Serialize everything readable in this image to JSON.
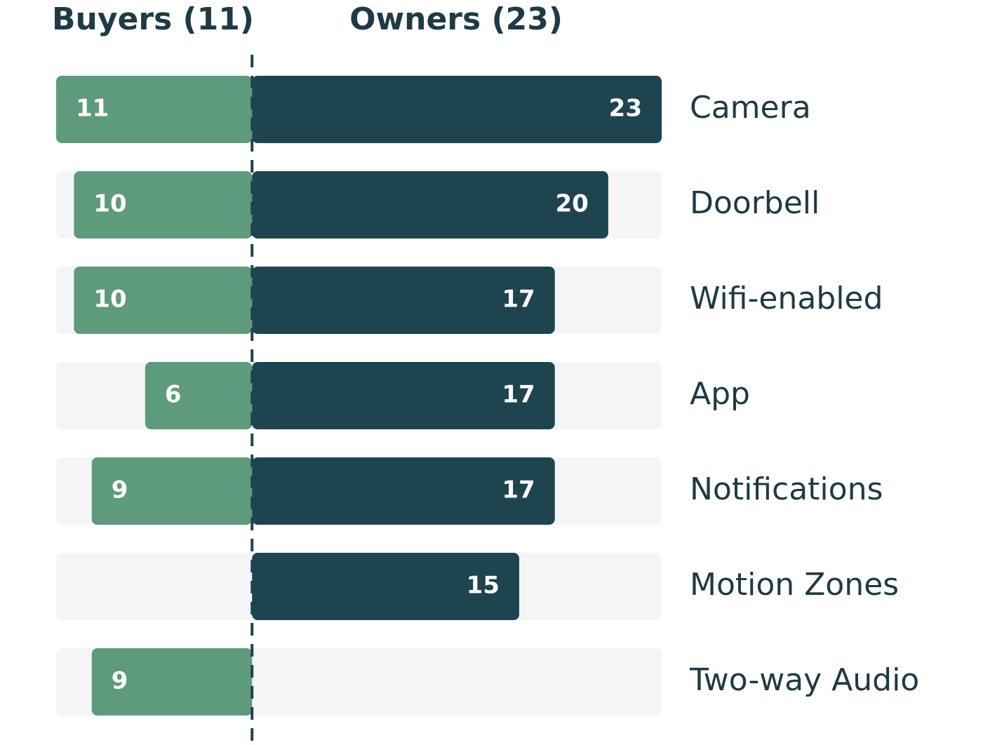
{
  "chart_data": {
    "type": "diverging-bar",
    "categories": [
      "Camera",
      "Doorbell",
      "Wifi-enabled",
      "App",
      "Notifications",
      "Motion Zones",
      "Two-way Audio"
    ],
    "series": [
      {
        "name": "Buyers (11)",
        "color": "#5e9a7c",
        "values": [
          11,
          10,
          10,
          6,
          9,
          null,
          9
        ]
      },
      {
        "name": "Owners (23)",
        "color": "#1e4450",
        "values": [
          23,
          20,
          17,
          17,
          17,
          15,
          null
        ]
      }
    ]
  }
}
